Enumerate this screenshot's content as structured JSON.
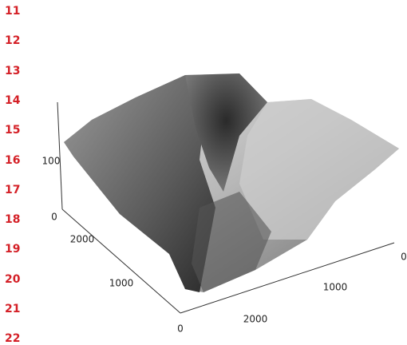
{
  "line_numbers": [
    "11",
    "12",
    "13",
    "14",
    "15",
    "16",
    "17",
    "18",
    "19",
    "20",
    "21",
    "22"
  ],
  "figure": {
    "z_ticks": [
      "100",
      "0"
    ],
    "left_ticks": [
      "2000",
      "1000",
      "0"
    ],
    "right_ticks": [
      "2000",
      "1000",
      "0"
    ]
  }
}
